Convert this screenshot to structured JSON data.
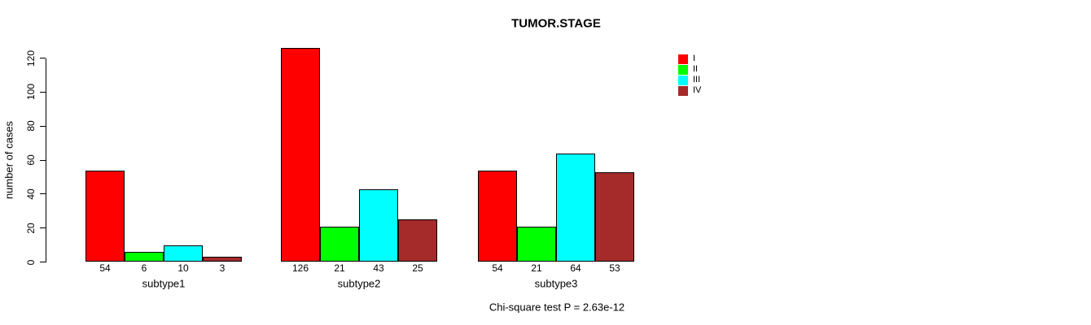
{
  "chart_data": {
    "type": "bar",
    "title": "TUMOR.STAGE",
    "ylabel": "number of cases",
    "xlabel": "",
    "ylim": [
      0,
      120
    ],
    "yticks": [
      0,
      20,
      40,
      60,
      80,
      100,
      120
    ],
    "categories": [
      "subtype1",
      "subtype2",
      "subtype3"
    ],
    "series": [
      {
        "name": "I",
        "color": "#FF0000",
        "values": [
          54,
          126,
          54
        ]
      },
      {
        "name": "II",
        "color": "#00FF00",
        "values": [
          6,
          21,
          21
        ]
      },
      {
        "name": "III",
        "color": "#00FFFF",
        "values": [
          10,
          43,
          64
        ]
      },
      {
        "name": "IV",
        "color": "#A52A2A",
        "values": [
          3,
          25,
          53
        ]
      }
    ],
    "bar_value_labels_shown": true,
    "legend_position": "top-right",
    "grid": false,
    "axis_color": "#000000",
    "bar_border_color": "#000000",
    "caption": "Chi-square test P = 2.63e-12"
  }
}
